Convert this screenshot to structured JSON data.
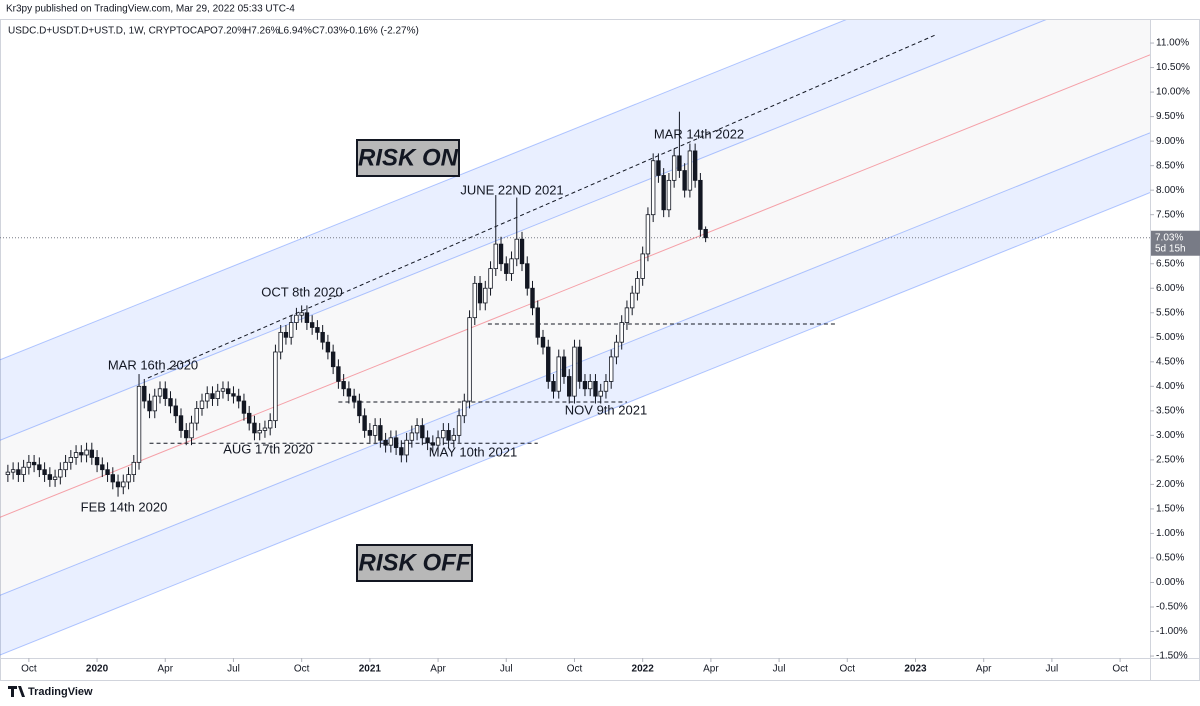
{
  "chart_data": {
    "type": "candlestick",
    "header": "Kr3py published on TradingView.com, Mar 29, 2022 05:33 UTC-4",
    "symbol": "USDC.D+USDT.D+UST.D, 1W, CRYPTOCAP",
    "legend_values": [
      "O7.20%",
      "H7.26%",
      "L6.94%",
      "C7.03%",
      "-0.16% (-2.27%)"
    ],
    "footer": "TradingView",
    "up_color": "#ffffff",
    "down_color": "#131722",
    "x": [
      0,
      1,
      2,
      3,
      4,
      5,
      6,
      7,
      8,
      9,
      10,
      11,
      12,
      13,
      14,
      15,
      16,
      17,
      18,
      19,
      20,
      21,
      22,
      23,
      24,
      25,
      26,
      27,
      28,
      29,
      30,
      31,
      32,
      33,
      34,
      35,
      36,
      37,
      38,
      39,
      40,
      41,
      42,
      43,
      44,
      45,
      46,
      47,
      48,
      49,
      50,
      51,
      52,
      53,
      54,
      55,
      56,
      57,
      58,
      59,
      60,
      61,
      62,
      63,
      64,
      65,
      66,
      67,
      68,
      69,
      70,
      71,
      72,
      73,
      74,
      75,
      76,
      77,
      78,
      79,
      80,
      81,
      82,
      83,
      84,
      85,
      86,
      87,
      88,
      89,
      90,
      91,
      92,
      93,
      94,
      95,
      96,
      97,
      98,
      99,
      100,
      101,
      102,
      103,
      104,
      105,
      106,
      107,
      108,
      109,
      110,
      111,
      112,
      113,
      114,
      115,
      116,
      117,
      118,
      119,
      120,
      121,
      122,
      123,
      124,
      125,
      126,
      127,
      128,
      129,
      130,
      131,
      132,
      133
    ],
    "open": [
      2.2,
      2.25,
      2.3,
      2.2,
      2.35,
      2.45,
      2.4,
      2.3,
      2.2,
      2.1,
      2.15,
      2.3,
      2.45,
      2.55,
      2.65,
      2.6,
      2.7,
      2.55,
      2.4,
      2.3,
      2.2,
      2.05,
      1.95,
      2.05,
      2.2,
      2.45,
      4.0,
      3.7,
      3.5,
      3.8,
      3.95,
      3.75,
      3.6,
      3.4,
      3.1,
      2.95,
      3.25,
      3.55,
      3.7,
      3.85,
      3.75,
      3.9,
      3.95,
      3.85,
      3.8,
      3.7,
      3.45,
      3.25,
      3.05,
      3.1,
      3.15,
      3.3,
      4.7,
      5.1,
      5.0,
      5.3,
      5.45,
      5.5,
      5.3,
      5.2,
      5.1,
      4.9,
      4.7,
      4.4,
      4.1,
      3.95,
      3.8,
      3.7,
      3.4,
      3.1,
      3.0,
      3.2,
      2.9,
      2.8,
      2.95,
      2.75,
      2.6,
      2.9,
      3.05,
      3.2,
      2.95,
      2.85,
      2.8,
      2.95,
      3.1,
      2.9,
      3.0,
      3.4,
      3.7,
      5.4,
      6.1,
      5.7,
      6.0,
      6.4,
      6.9,
      6.5,
      6.3,
      6.6,
      7.0,
      6.5,
      6.0,
      5.6,
      5.0,
      4.8,
      4.1,
      3.9,
      4.6,
      4.2,
      3.8,
      4.8,
      4.1,
      3.95,
      4.1,
      3.8,
      3.9,
      4.1,
      4.6,
      4.9,
      5.3,
      5.6,
      5.9,
      6.2,
      6.7,
      7.5,
      8.6,
      8.3,
      7.6,
      8.2,
      8.7,
      8.4,
      8.0,
      8.8,
      8.2,
      7.2
    ],
    "high": [
      2.4,
      2.45,
      2.45,
      2.5,
      2.6,
      2.6,
      2.55,
      2.45,
      2.35,
      2.3,
      2.45,
      2.6,
      2.7,
      2.8,
      2.8,
      2.85,
      2.85,
      2.7,
      2.55,
      2.45,
      2.35,
      2.2,
      2.2,
      2.35,
      2.6,
      4.25,
      4.15,
      3.85,
      3.95,
      4.1,
      4.1,
      3.9,
      3.75,
      3.55,
      3.25,
      3.4,
      3.7,
      3.85,
      4.0,
      4.0,
      4.05,
      4.1,
      4.1,
      4.0,
      3.95,
      3.85,
      3.6,
      3.4,
      3.25,
      3.3,
      3.45,
      4.85,
      5.25,
      5.25,
      5.45,
      5.6,
      5.65,
      5.65,
      5.45,
      5.35,
      5.25,
      5.05,
      4.85,
      4.55,
      4.25,
      4.1,
      3.95,
      3.85,
      3.55,
      3.25,
      3.35,
      3.35,
      3.05,
      3.1,
      3.1,
      2.9,
      3.05,
      3.2,
      3.35,
      3.35,
      3.1,
      3.0,
      3.1,
      3.25,
      3.25,
      3.15,
      3.55,
      3.85,
      5.55,
      6.25,
      6.25,
      6.15,
      6.55,
      7.9,
      7.05,
      6.65,
      6.75,
      7.85,
      7.15,
      6.65,
      6.15,
      5.75,
      5.15,
      4.95,
      4.25,
      4.75,
      4.75,
      4.35,
      4.95,
      4.95,
      4.25,
      4.25,
      4.25,
      4.05,
      4.25,
      4.75,
      5.05,
      5.45,
      5.75,
      6.05,
      6.35,
      6.85,
      7.65,
      8.75,
      8.75,
      8.45,
      8.35,
      8.85,
      9.6,
      8.55,
      8.95,
      8.95,
      8.35,
      7.26
    ],
    "low": [
      2.05,
      2.1,
      2.05,
      2.05,
      2.2,
      2.25,
      2.15,
      2.05,
      1.95,
      1.95,
      2.0,
      2.15,
      2.3,
      2.4,
      2.45,
      2.45,
      2.4,
      2.25,
      2.15,
      2.05,
      1.9,
      1.75,
      1.8,
      1.9,
      2.05,
      2.3,
      3.55,
      3.35,
      3.35,
      3.65,
      3.6,
      3.45,
      3.25,
      2.95,
      2.8,
      2.8,
      3.1,
      3.4,
      3.55,
      3.6,
      3.6,
      3.75,
      3.7,
      3.65,
      3.55,
      3.3,
      3.1,
      2.9,
      2.9,
      2.95,
      3.0,
      3.15,
      4.55,
      4.85,
      4.85,
      5.15,
      5.3,
      5.15,
      5.05,
      4.95,
      4.75,
      4.55,
      4.25,
      3.95,
      3.8,
      3.65,
      3.55,
      3.25,
      2.95,
      2.85,
      2.85,
      2.75,
      2.65,
      2.65,
      2.6,
      2.45,
      2.45,
      2.75,
      2.9,
      2.8,
      2.7,
      2.65,
      2.65,
      2.8,
      2.75,
      2.75,
      2.85,
      3.25,
      3.55,
      5.25,
      5.55,
      5.55,
      5.85,
      6.25,
      6.35,
      6.15,
      6.15,
      6.45,
      6.35,
      5.85,
      5.45,
      4.85,
      4.65,
      3.95,
      3.75,
      3.75,
      4.05,
      3.65,
      3.65,
      3.95,
      3.8,
      3.8,
      3.65,
      3.65,
      3.75,
      3.95,
      4.45,
      4.75,
      5.15,
      5.45,
      5.75,
      6.05,
      6.55,
      7.35,
      8.15,
      7.45,
      7.45,
      8.05,
      8.25,
      7.85,
      7.85,
      8.05,
      7.05,
      6.94
    ],
    "close": [
      2.25,
      2.3,
      2.2,
      2.35,
      2.45,
      2.4,
      2.3,
      2.2,
      2.1,
      2.15,
      2.3,
      2.45,
      2.55,
      2.65,
      2.6,
      2.7,
      2.55,
      2.4,
      2.3,
      2.2,
      2.05,
      1.95,
      2.05,
      2.2,
      2.45,
      4.0,
      3.7,
      3.5,
      3.8,
      3.95,
      3.75,
      3.6,
      3.4,
      3.1,
      2.95,
      3.25,
      3.55,
      3.7,
      3.85,
      3.75,
      3.9,
      3.95,
      3.85,
      3.8,
      3.7,
      3.45,
      3.25,
      3.05,
      3.1,
      3.15,
      3.3,
      4.7,
      5.1,
      5.0,
      5.3,
      5.45,
      5.5,
      5.3,
      5.2,
      5.1,
      4.9,
      4.7,
      4.4,
      4.1,
      3.95,
      3.8,
      3.7,
      3.4,
      3.1,
      3.0,
      3.2,
      2.9,
      2.8,
      2.95,
      2.75,
      2.6,
      2.9,
      3.05,
      3.2,
      2.95,
      2.85,
      2.8,
      2.95,
      3.1,
      2.9,
      3.0,
      3.4,
      3.7,
      5.4,
      6.1,
      5.7,
      6.0,
      6.4,
      6.9,
      6.5,
      6.3,
      6.6,
      7.0,
      6.5,
      6.0,
      5.6,
      5.0,
      4.8,
      4.1,
      3.9,
      4.6,
      4.2,
      3.8,
      4.8,
      4.1,
      3.95,
      4.1,
      3.8,
      3.9,
      4.1,
      4.6,
      4.9,
      5.3,
      5.6,
      5.9,
      6.2,
      6.7,
      7.5,
      8.6,
      8.3,
      7.6,
      8.2,
      8.7,
      8.4,
      8.0,
      8.8,
      8.2,
      7.2,
      7.03
    ],
    "xlim": [
      -1.5,
      217.7
    ],
    "xticks": [
      {
        "value": 4,
        "label": "Oct"
      },
      {
        "value": 17,
        "label": "2020"
      },
      {
        "value": 30,
        "label": "Apr"
      },
      {
        "value": 43,
        "label": "Jul"
      },
      {
        "value": 56,
        "label": "Oct"
      },
      {
        "value": 69,
        "label": "2021"
      },
      {
        "value": 82,
        "label": "Apr"
      },
      {
        "value": 95,
        "label": "Jul"
      },
      {
        "value": 108,
        "label": "Oct"
      },
      {
        "value": 121,
        "label": "2022"
      },
      {
        "value": 134,
        "label": "Apr"
      },
      {
        "value": 147,
        "label": "Jul"
      },
      {
        "value": 160,
        "label": "Oct"
      },
      {
        "value": 173,
        "label": "2023"
      },
      {
        "value": 186,
        "label": "Apr"
      },
      {
        "value": 199,
        "label": "Jul"
      },
      {
        "value": 212,
        "label": "Oct"
      }
    ],
    "ylim": [
      -1.54,
      11.47
    ],
    "yticks": [
      {
        "value": 11,
        "label": "11.00%"
      },
      {
        "value": 10.5,
        "label": "10.50%"
      },
      {
        "value": 10,
        "label": "10.00%"
      },
      {
        "value": 9.5,
        "label": "9.50%"
      },
      {
        "value": 9,
        "label": "9.00%"
      },
      {
        "value": 8.5,
        "label": "8.50%"
      },
      {
        "value": 8,
        "label": "8.00%"
      },
      {
        "value": 7.5,
        "label": "7.50%"
      },
      {
        "value": 6.5,
        "label": "6.50%"
      },
      {
        "value": 6,
        "label": "6.00%"
      },
      {
        "value": 5.5,
        "label": "5.50%"
      },
      {
        "value": 5,
        "label": "5.00%"
      },
      {
        "value": 4.5,
        "label": "4.50%"
      },
      {
        "value": 4,
        "label": "4.00%"
      },
      {
        "value": 3.5,
        "label": "3.50%"
      },
      {
        "value": 3,
        "label": "3.00%"
      },
      {
        "value": 2.5,
        "label": "2.50%"
      },
      {
        "value": 2,
        "label": "2.00%"
      },
      {
        "value": 1.5,
        "label": "1.50%"
      },
      {
        "value": 1,
        "label": "1.00%"
      },
      {
        "value": 0.5,
        "label": "0.50%"
      },
      {
        "value": 0,
        "label": "0.00%"
      },
      {
        "value": -0.5,
        "label": "-0.50%"
      },
      {
        "value": -1,
        "label": "-1.00%"
      },
      {
        "value": -1.5,
        "label": "-1.50%"
      }
    ],
    "last_price": {
      "value": 7.03,
      "label": "7.03%"
    },
    "countdown": "5d 15h",
    "channel": {
      "x": [
        -1.5,
        217.7
      ],
      "upper": [
        4.54,
        13.97
      ],
      "upper_inner": [
        2.9,
        12.33
      ],
      "middle": [
        1.33,
        10.76
      ],
      "lower_inner": [
        -0.26,
        9.17
      ],
      "lower": [
        -1.48,
        7.95
      ]
    },
    "trend_line": {
      "x": [
        26.7,
        176.7
      ],
      "y": [
        4.17,
        11.16
      ]
    },
    "levels": [
      {
        "x": [
          27,
          101
        ],
        "y": 2.84
      },
      {
        "x": [
          63,
          118
        ],
        "y": 3.68
      },
      {
        "x": [
          91.5,
          158
        ],
        "y": 5.27
      }
    ],
    "annotations": [
      "MAR 16th 2020",
      "OCT 8th 2020",
      "JUNE 22ND 2021",
      "MAR 14th 2022",
      "FEB 14th 2020",
      "AUG 17th 2020",
      "MAY 10th 2021",
      "NOV 9th 2021"
    ],
    "boxes": [
      "RISK ON",
      "RISK OFF"
    ]
  }
}
